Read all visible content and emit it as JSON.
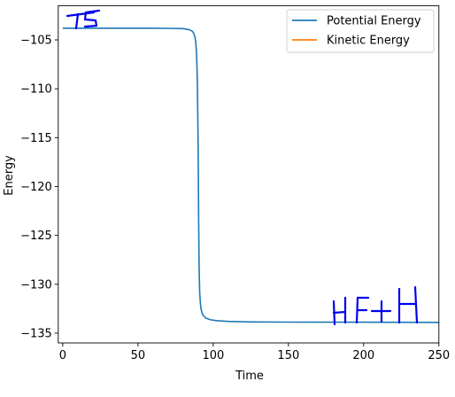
{
  "chart_data": {
    "type": "line",
    "xlabel": "Time",
    "ylabel": "Energy",
    "xlim": [
      -3,
      250
    ],
    "ylim": [
      -136,
      -101.5
    ],
    "x_ticks": [
      0,
      50,
      100,
      150,
      200,
      250
    ],
    "x_tick_labels": [
      "0",
      "50",
      "100",
      "150",
      "200",
      "250"
    ],
    "y_ticks": [
      -105,
      -110,
      -115,
      -120,
      -125,
      -130,
      -135
    ],
    "y_tick_labels": [
      "−105",
      "−110",
      "−115",
      "−120",
      "−125",
      "−130",
      "−135"
    ],
    "grid": false,
    "legend_position": "upper right",
    "series": [
      {
        "name": "Potential Energy",
        "color": "#1f77b4",
        "x": [
          0,
          20,
          40,
          60,
          70,
          80,
          84,
          86,
          87,
          88,
          88.5,
          89,
          89.5,
          90,
          90.3,
          90.6,
          91,
          91.5,
          92,
          93,
          95,
          98,
          102,
          110,
          125,
          150,
          200,
          250
        ],
        "y": [
          -103.8,
          -103.8,
          -103.8,
          -103.8,
          -103.82,
          -103.85,
          -103.95,
          -104.1,
          -104.3,
          -104.8,
          -105.4,
          -106.6,
          -109.5,
          -116,
          -123,
          -128,
          -130.8,
          -132.0,
          -132.6,
          -133.1,
          -133.45,
          -133.62,
          -133.72,
          -133.8,
          -133.85,
          -133.87,
          -133.88,
          -133.9
        ]
      },
      {
        "name": "Kinetic Energy",
        "color": "#ff7f0e",
        "x": [],
        "y": []
      }
    ],
    "annotations": [
      {
        "text": "TS",
        "style": "handwritten",
        "color": "#0000ee",
        "x": 10,
        "y": -102.4
      },
      {
        "text": "HF+H",
        "style": "handwritten",
        "color": "#0000ee",
        "x": 208,
        "y": -132.2
      }
    ]
  }
}
